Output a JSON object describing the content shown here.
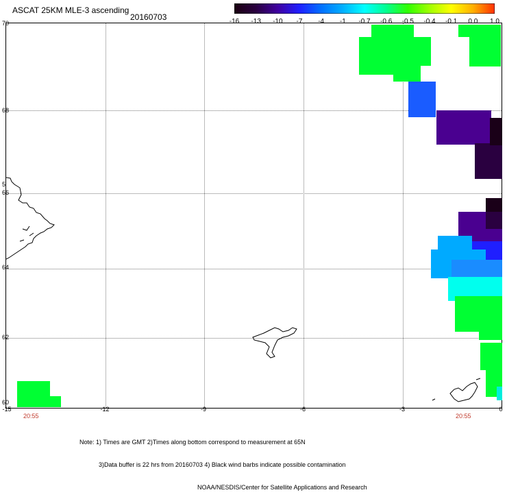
{
  "header": {
    "title": "ASCAT 25KM MLE-3 ascending",
    "date": "20160703"
  },
  "colorbar": {
    "labels": [
      "-16",
      "-13",
      "-10",
      "-7",
      "-4",
      "-1",
      "-0.7",
      "-0.6",
      "-0.5",
      "-0.4",
      "-0.1",
      "0.0",
      "1.0"
    ],
    "colors": [
      "#1a0010",
      "#2a0040",
      "#3f00a0",
      "#1f1fff",
      "#0070ff",
      "#00b0ff",
      "#00ffff",
      "#00ff90",
      "#30ff00",
      "#a0ff00",
      "#ffff00",
      "#ffb000",
      "#ff3000"
    ]
  },
  "axes": {
    "lat_labels": [
      "70",
      "68",
      "66",
      "64",
      "62",
      "60"
    ],
    "lat_label_65": "5",
    "lon_labels": [
      "-15",
      "-12",
      "-9",
      "-6",
      "-3",
      "0"
    ]
  },
  "times": {
    "left": "20:55",
    "right": "20:55"
  },
  "notes": {
    "line1": "Note: 1) Times are GMT 2)Times along bottom correspond to measurement at 65N",
    "line2": "3)Data buffer is 22 hrs from 20160703 4) Black wind barbs indicate possible contamination",
    "line3": "NOAA/NESDIS/Center for Satellite Applications and Research"
  },
  "map_data": {
    "type": "satellite-swath-map",
    "lon_range": [
      -15,
      0
    ],
    "lat_range": [
      60,
      70
    ],
    "variable": "MLE",
    "regions": [
      {
        "label": "-0.5",
        "color": "#00ff33"
      },
      {
        "label": "-7",
        "color": "#1a5cff"
      },
      {
        "label": "-13",
        "color": "#4a0090"
      },
      {
        "label": "-16",
        "color": "#2a0040"
      },
      {
        "label": "-4",
        "color": "#00aaff"
      },
      {
        "label": "-0.7",
        "color": "#00ffee"
      }
    ]
  }
}
